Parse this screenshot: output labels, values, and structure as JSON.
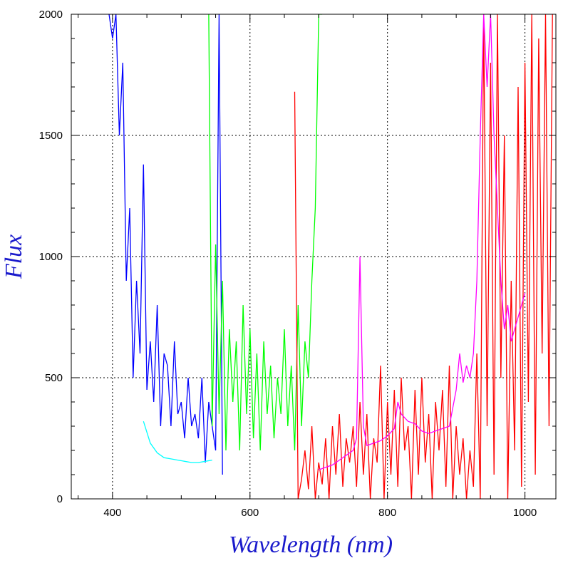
{
  "chart_data": {
    "type": "line",
    "title": "",
    "xlabel": "Wavelength (nm)",
    "ylabel": "Flux",
    "xlim": [
      340,
      1045
    ],
    "ylim": [
      0,
      2000
    ],
    "x_ticks": [
      400,
      600,
      800,
      1000
    ],
    "y_ticks": [
      0,
      500,
      1000,
      1500,
      2000
    ],
    "x_tick_labels": [
      "400",
      "600",
      "800",
      "1000"
    ],
    "y_tick_labels": [
      "0",
      "500",
      "1000",
      "1500",
      "2000"
    ],
    "grid": true,
    "grid_style": "dotted",
    "label_color": "#1a1acc",
    "series": [
      {
        "color": "#0000ff",
        "x": [
          395,
          400,
          405,
          410,
          415,
          420,
          425,
          430,
          435,
          440,
          445,
          450,
          455,
          460,
          465,
          470,
          475,
          480,
          485,
          490,
          495,
          500,
          505,
          510,
          515,
          520,
          525,
          530,
          535,
          540,
          545,
          550,
          555,
          560
        ],
        "y": [
          2000,
          1900,
          2000,
          1500,
          1800,
          900,
          1200,
          500,
          900,
          600,
          1380,
          450,
          650,
          400,
          800,
          300,
          600,
          550,
          300,
          650,
          350,
          400,
          250,
          500,
          300,
          350,
          250,
          500,
          150,
          400,
          300,
          200,
          2000,
          100
        ]
      },
      {
        "color": "#00ffff",
        "x": [
          445,
          455,
          465,
          475,
          485,
          495,
          505,
          515,
          525,
          535,
          545
        ],
        "y": [
          320,
          230,
          190,
          170,
          165,
          160,
          155,
          150,
          150,
          155,
          160
        ]
      },
      {
        "color": "#00ff00",
        "x": [
          540,
          545,
          550,
          555,
          560,
          565,
          570,
          575,
          580,
          585,
          590,
          595,
          600,
          605,
          610,
          615,
          620,
          625,
          630,
          635,
          640,
          645,
          650,
          655,
          660,
          665,
          670,
          675,
          680,
          685,
          690,
          695,
          700,
          705
        ],
        "y": [
          2000,
          300,
          1050,
          350,
          900,
          200,
          700,
          400,
          650,
          200,
          800,
          350,
          700,
          250,
          600,
          200,
          650,
          350,
          550,
          250,
          500,
          350,
          700,
          300,
          550,
          200,
          800,
          300,
          650,
          500,
          900,
          1200,
          2000,
          2000
        ]
      },
      {
        "color": "#ff0000",
        "x": [
          665,
          670,
          675,
          680,
          685,
          690,
          695,
          700,
          705,
          710,
          715,
          720,
          725,
          730,
          735,
          740,
          745,
          750,
          755,
          760,
          765,
          770,
          775,
          780,
          785,
          790,
          795,
          800,
          805,
          810,
          815,
          820,
          825,
          830,
          835,
          840,
          845,
          850,
          855,
          860,
          865,
          870,
          875,
          880,
          885,
          890,
          895,
          900,
          905,
          910,
          915,
          920,
          925,
          930,
          935,
          940,
          945,
          950,
          955,
          960,
          965,
          970,
          975,
          980,
          985,
          990,
          995,
          1000,
          1005,
          1010,
          1015,
          1020,
          1025,
          1030,
          1035,
          1040
        ],
        "y": [
          1680,
          0,
          80,
          200,
          40,
          300,
          0,
          150,
          60,
          250,
          0,
          300,
          100,
          350,
          50,
          250,
          150,
          300,
          50,
          400,
          100,
          350,
          0,
          250,
          150,
          550,
          0,
          400,
          100,
          450,
          50,
          500,
          200,
          300,
          0,
          450,
          100,
          500,
          150,
          350,
          0,
          400,
          200,
          450,
          50,
          550,
          0,
          300,
          100,
          250,
          0,
          200,
          50,
          600,
          0,
          2000,
          300,
          1800,
          100,
          2000,
          500,
          1500,
          0,
          900,
          200,
          1700,
          50,
          1800,
          400,
          2000,
          100,
          1900,
          600,
          2000,
          300,
          2000
        ]
      },
      {
        "color": "#ff00ff",
        "x": [
          700,
          710,
          720,
          730,
          740,
          750,
          755,
          760,
          765,
          770,
          780,
          790,
          800,
          810,
          815,
          820,
          830,
          840,
          850,
          860,
          870,
          880,
          890,
          900,
          905,
          910,
          915,
          920,
          925,
          930,
          935,
          940,
          945,
          950,
          955,
          960,
          965,
          970,
          975,
          980,
          985,
          990,
          995,
          1000
        ],
        "y": [
          120,
          130,
          140,
          160,
          180,
          200,
          250,
          1000,
          300,
          220,
          230,
          240,
          260,
          290,
          400,
          350,
          320,
          310,
          280,
          270,
          280,
          290,
          300,
          450,
          600,
          480,
          550,
          500,
          600,
          900,
          1500,
          2000,
          1700,
          2000,
          1500,
          1200,
          900,
          700,
          800,
          650,
          700,
          750,
          800,
          850
        ]
      }
    ]
  }
}
